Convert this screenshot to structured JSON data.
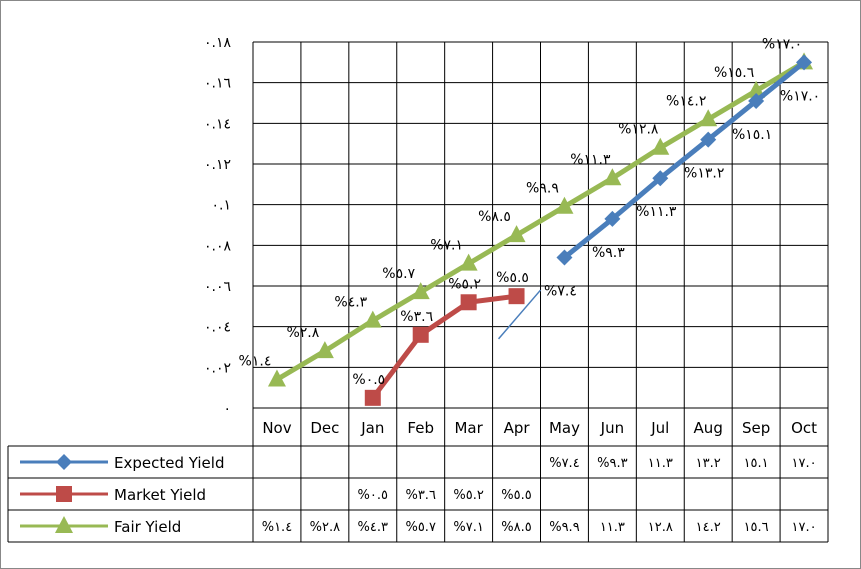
{
  "chart_data": {
    "type": "line",
    "title": "",
    "xlabel": "",
    "ylabel": "",
    "categories": [
      "Nov",
      "Dec",
      "Jan",
      "Feb",
      "Mar",
      "Apr",
      "May",
      "Jun",
      "Jul",
      "Aug",
      "Sep",
      "Oct"
    ],
    "y_ticks": [
      "٠",
      "٠.٠٢",
      "٠.٠٤",
      "٠.٠٦",
      "٠.٠٨",
      "٠.١",
      "٠.١٢",
      "٠.١٤",
      "٠.١٦",
      "٠.١٨"
    ],
    "ylim": [
      0,
      0.18
    ],
    "grid": true,
    "legend": "data-table",
    "series": [
      {
        "name": "Expected Yield",
        "color": "#4a7ebb",
        "marker": "diamond",
        "values": [
          null,
          null,
          null,
          null,
          null,
          null,
          0.074,
          0.093,
          0.113,
          0.132,
          0.151,
          0.17
        ],
        "point_labels": [
          "",
          "",
          "",
          "",
          "",
          "",
          "%٧.٤",
          "%٩.٣",
          "%١١.٣",
          "%١٣.٢",
          "%١٥.١",
          "%١٧.٠"
        ],
        "table_cells": [
          "",
          "",
          "",
          "",
          "",
          "",
          "%٧.٤",
          "%٩.٣",
          "١١.٣",
          "١٣.٢",
          "١٥.١",
          "١٧.٠"
        ]
      },
      {
        "name": "Market Yield",
        "color": "#be4b48",
        "marker": "square",
        "values": [
          null,
          null,
          0.005,
          0.036,
          0.052,
          0.055,
          null,
          null,
          null,
          null,
          null,
          null
        ],
        "point_labels": [
          "",
          "",
          "%٠.٥",
          "%٣.٦",
          "%٥.٢",
          "%٥.٥",
          "",
          "",
          "",
          "",
          "",
          ""
        ],
        "table_cells": [
          "",
          "",
          "%٠.٥",
          "%٣.٦",
          "%٥.٢",
          "%٥.٥",
          "",
          "",
          "",
          "",
          "",
          ""
        ]
      },
      {
        "name": "Fair Yield",
        "color": "#98b954",
        "marker": "triangle",
        "values": [
          0.014,
          0.028,
          0.043,
          0.057,
          0.071,
          0.085,
          0.099,
          0.113,
          0.128,
          0.142,
          0.156,
          0.17
        ],
        "point_labels": [
          "%١.٤",
          "%٢.٨",
          "%٤.٣",
          "%٥.٧",
          "%٧.١",
          "%٨.٥",
          "%٩.٩",
          "%١١.٣",
          "%١٢.٨",
          "%١٤.٢",
          "%١٥.٦",
          "%١٧.٠"
        ],
        "table_cells": [
          "%١.٤",
          "%٢.٨",
          "%٤.٣",
          "%٥.٧",
          "%٧.١",
          "%٨.٥",
          "%٩.٩",
          "١١.٣",
          "١٢.٨",
          "١٤.٢",
          "١٥.٦",
          "١٧.٠"
        ]
      }
    ]
  }
}
